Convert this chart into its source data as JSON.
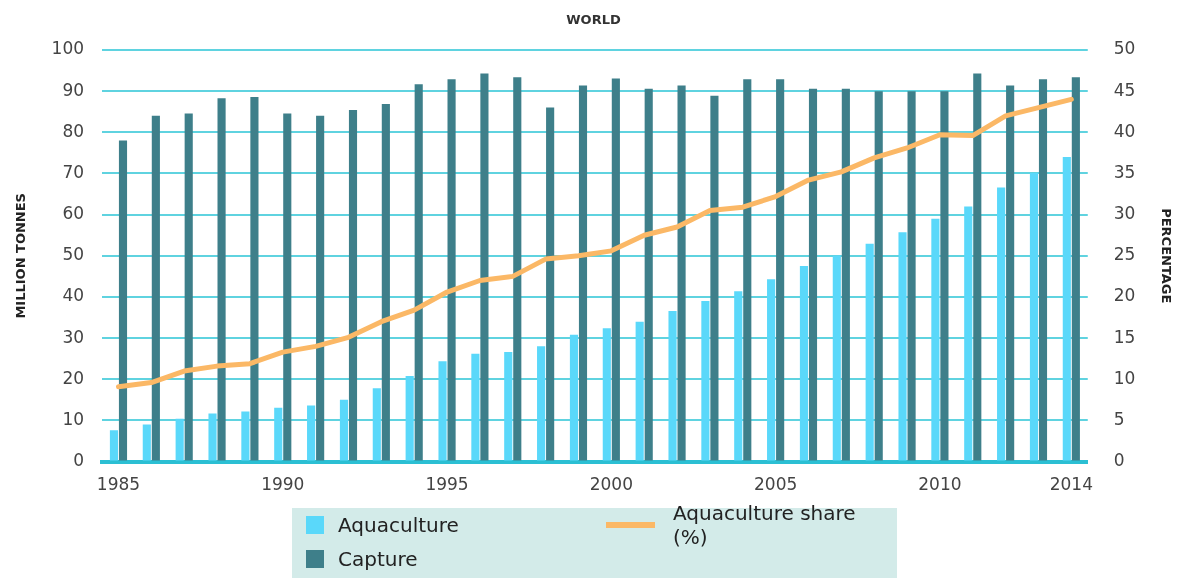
{
  "chart_data": {
    "type": "bar",
    "title": "WORLD",
    "ylabel": "MILLION TONNES",
    "y2label": "PERCENTAGE",
    "categories": [
      "1985",
      null,
      null,
      null,
      null,
      "1990",
      null,
      null,
      null,
      null,
      "1995",
      null,
      null,
      null,
      null,
      "2000",
      null,
      null,
      null,
      null,
      "2005",
      null,
      null,
      null,
      null,
      "2010",
      null,
      null,
      null,
      "2014"
    ],
    "series": [
      {
        "name": "Aquaculture",
        "color": "#5ad8fa",
        "values": [
          7.6,
          9,
          10.4,
          11.7,
          12.2,
          13.1,
          13.6,
          15,
          17.8,
          20.8,
          24.4,
          26.2,
          26.6,
          28,
          30.8,
          32.4,
          34,
          36.6,
          39,
          41.4,
          44.3,
          47.5,
          50,
          52.9,
          55.7,
          59,
          62,
          66.6,
          70.1,
          74
        ]
      },
      {
        "name": "Capture",
        "color": "#3e7f8a",
        "values": [
          78,
          84,
          84.6,
          88.3,
          88.6,
          84.6,
          84,
          85.4,
          86.9,
          91.7,
          92.9,
          94.3,
          93.4,
          86,
          91.4,
          93.1,
          90.6,
          91.4,
          88.9,
          92.9,
          92.9,
          90.6,
          90.6,
          90,
          90,
          90,
          94.3,
          91.4,
          92.9,
          93.4
        ]
      },
      {
        "name": "Aquaculture share (%)",
        "type": "line",
        "axis": "y2",
        "color": "#fbb866",
        "values": [
          9.1,
          9.6,
          11,
          11.6,
          11.9,
          13.3,
          14,
          15.1,
          17,
          18.4,
          20.6,
          22,
          22.5,
          24.6,
          25,
          25.6,
          27.5,
          28.5,
          30.5,
          30.9,
          32.2,
          34.2,
          35.2,
          36.9,
          38.1,
          39.7,
          39.6,
          42,
          43,
          44
        ]
      }
    ],
    "ylim": [
      0,
      100
    ],
    "yticks": [
      0,
      10,
      20,
      30,
      40,
      50,
      60,
      70,
      80,
      90,
      100
    ],
    "y2lim": [
      0,
      50
    ],
    "y2ticks": [
      0,
      5,
      10,
      15,
      20,
      25,
      30,
      35,
      40,
      45,
      50
    ],
    "grid": "y",
    "legend": "bottom",
    "marker": "none"
  }
}
